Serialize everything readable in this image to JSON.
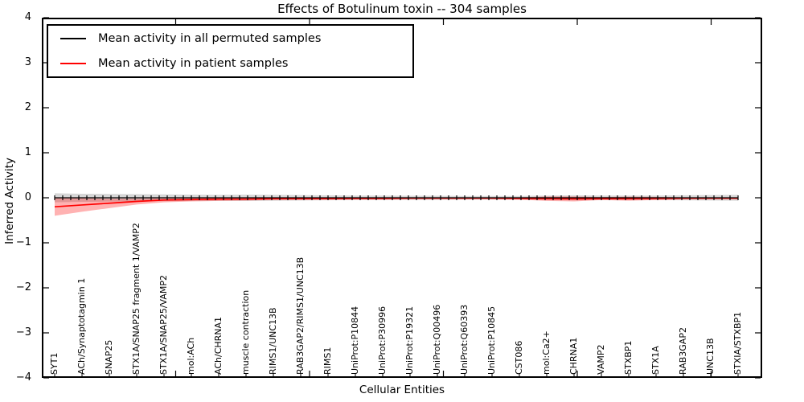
{
  "chart_data": {
    "type": "line",
    "title": "Effects of Botulinum toxin -- 304 samples",
    "xlabel": "Cellular Entities",
    "ylabel": "Inferred Activity",
    "ylim": [
      -4,
      4
    ],
    "yticks": [
      4,
      3,
      2,
      1,
      0,
      -1,
      -2,
      -3,
      -4
    ],
    "ytick_labels": [
      "4",
      "3",
      "2",
      "1",
      "0",
      "−1",
      "−2",
      "−3",
      "−4"
    ],
    "grid": false,
    "legend_position": "upper left",
    "categories": [
      "SYT1",
      "ACh/Synaptotagmin 1",
      "SNAP25",
      "STX1A/SNAP25 fragment 1/VAMP2",
      "STX1A/SNAP25/VAMP2",
      "mol:ACh",
      "ACh/CHRNA1",
      "muscle contraction",
      "RIMS1/UNC13B",
      "RAB3GAP2/RIMS1/UNC13B",
      "RIMS1",
      "UniProt:P10844",
      "UniProt:P30996",
      "UniProt:P19321",
      "UniProt:Q00496",
      "UniProt:Q60393",
      "UniProt:P10845",
      "CST086",
      "mol:Ca2+",
      "CHRNA1",
      "VAMP2",
      "STXBP1",
      "STX1A",
      "RAB3GAP2",
      "UNC13B",
      "STXIA/STXBP1"
    ],
    "series": [
      {
        "name": "Mean activity in all permuted samples",
        "color": "#000000",
        "line_width": 1.3,
        "marker_ticks": true,
        "values": [
          0,
          0,
          0,
          0,
          0,
          0,
          0,
          0,
          0,
          0,
          0,
          0,
          0,
          0,
          0,
          0,
          0,
          0,
          0,
          0,
          0,
          0,
          0,
          0,
          0,
          0
        ],
        "band_color": "rgba(0,0,0,0.16)",
        "band_upper": [
          0.1,
          0.09,
          0.085,
          0.08,
          0.075,
          0.07,
          0.065,
          0.07,
          0.065,
          0.06,
          0.055,
          0.05,
          0.05,
          0.045,
          0.045,
          0.04,
          0.04,
          0.04,
          0.05,
          0.055,
          0.05,
          0.05,
          0.05,
          0.055,
          0.06,
          0.065
        ],
        "band_lower": [
          -0.1,
          -0.09,
          -0.085,
          -0.08,
          -0.075,
          -0.07,
          -0.065,
          -0.07,
          -0.065,
          -0.06,
          -0.055,
          -0.05,
          -0.05,
          -0.045,
          -0.045,
          -0.04,
          -0.04,
          -0.04,
          -0.05,
          -0.055,
          -0.05,
          -0.05,
          -0.05,
          -0.055,
          -0.06,
          -0.065
        ]
      },
      {
        "name": "Mean activity in patient samples",
        "color": "#ff0000",
        "line_width": 1.7,
        "marker_ticks": false,
        "values": [
          -0.2,
          -0.16,
          -0.12,
          -0.08,
          -0.05,
          -0.04,
          -0.03,
          -0.03,
          -0.02,
          -0.02,
          -0.02,
          -0.015,
          -0.015,
          -0.01,
          -0.01,
          -0.01,
          -0.01,
          -0.015,
          -0.02,
          -0.025,
          -0.02,
          -0.02,
          -0.015,
          -0.01,
          -0.01,
          -0.01
        ],
        "band_color": "rgba(255,0,0,0.30)",
        "band_upper": [
          0.01,
          -0.01,
          -0.02,
          -0.02,
          -0.01,
          0.0,
          0.0,
          0.0,
          0.0,
          0.005,
          0.005,
          0.005,
          0.005,
          0.005,
          0.005,
          0.005,
          0.005,
          0.01,
          0.03,
          0.03,
          0.015,
          0.025,
          0.02,
          0.01,
          0.01,
          0.01
        ],
        "band_lower": [
          -0.4,
          -0.31,
          -0.23,
          -0.15,
          -0.1,
          -0.08,
          -0.07,
          -0.06,
          -0.05,
          -0.045,
          -0.04,
          -0.035,
          -0.035,
          -0.03,
          -0.03,
          -0.03,
          -0.03,
          -0.04,
          -0.07,
          -0.08,
          -0.05,
          -0.065,
          -0.05,
          -0.035,
          -0.03,
          -0.03
        ]
      }
    ]
  }
}
